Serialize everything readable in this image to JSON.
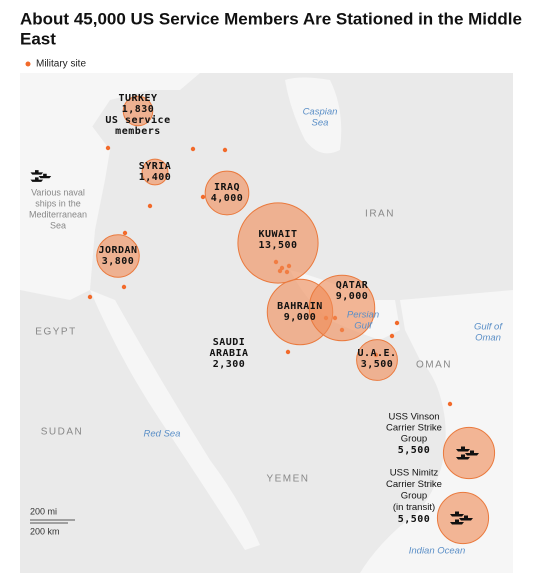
{
  "title": "About 45,000 US Service Members Are Stationed in the Middle East",
  "legend": "Military site",
  "locations": [
    {
      "name": [
        "TURKEY"
      ],
      "count": "1,830",
      "value": 1830,
      "note": [
        "US service",
        "members"
      ]
    },
    {
      "name": [
        "SYRIA"
      ],
      "count": "1,400",
      "value": 1400
    },
    {
      "name": [
        "IRAQ"
      ],
      "count": "4,000",
      "value": 4000
    },
    {
      "name": [
        "KUWAIT"
      ],
      "count": "13,500",
      "value": 13500
    },
    {
      "name": [
        "JORDAN"
      ],
      "count": "3,800",
      "value": 3800
    },
    {
      "name": [
        "BAHRAIN"
      ],
      "count": "9,000",
      "value": 9000
    },
    {
      "name": [
        "QATAR"
      ],
      "count": "9,000",
      "value": 9000
    },
    {
      "name": [
        "SAUDI",
        "ARABIA"
      ],
      "count": "2,300"
    },
    {
      "name": [
        "U.A.E."
      ],
      "count": "3,500",
      "value": 3500
    },
    {
      "name": [
        "USS Vinson",
        "Carrier Strike",
        "Group"
      ],
      "count": "5,500",
      "value": 5500
    },
    {
      "name": [
        "USS Nimitz",
        "Carrier Strike",
        "Group",
        "(in transit)"
      ],
      "count": "5,500",
      "value": 5500
    }
  ],
  "naval_note": [
    "Various naval",
    "ships in the",
    "Mediterranean",
    "Sea"
  ],
  "countries": [
    "IRAN",
    "EGYPT",
    "SUDAN",
    "YEMEN",
    "OMAN"
  ],
  "waters": [
    [
      "Caspian",
      "Sea"
    ],
    [
      "Persian",
      "Gulf"
    ],
    [
      "Gulf of",
      "Oman"
    ],
    [
      "Red Sea"
    ],
    [
      "Indian Ocean"
    ]
  ],
  "scale": [
    "200 mi",
    "200 km"
  ]
}
